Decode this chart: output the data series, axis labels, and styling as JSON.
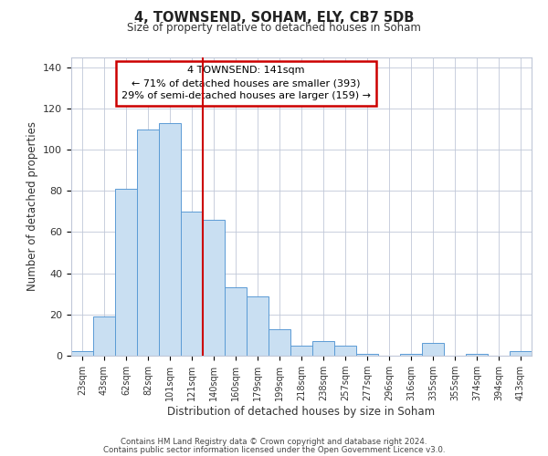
{
  "title": "4, TOWNSEND, SOHAM, ELY, CB7 5DB",
  "subtitle": "Size of property relative to detached houses in Soham",
  "xlabel": "Distribution of detached houses by size in Soham",
  "ylabel": "Number of detached properties",
  "bar_labels": [
    "23sqm",
    "43sqm",
    "62sqm",
    "82sqm",
    "101sqm",
    "121sqm",
    "140sqm",
    "160sqm",
    "179sqm",
    "199sqm",
    "218sqm",
    "238sqm",
    "257sqm",
    "277sqm",
    "296sqm",
    "316sqm",
    "335sqm",
    "355sqm",
    "374sqm",
    "394sqm",
    "413sqm"
  ],
  "bar_values": [
    2,
    19,
    81,
    110,
    113,
    70,
    66,
    33,
    29,
    13,
    5,
    7,
    5,
    1,
    0,
    1,
    6,
    0,
    1,
    0,
    2
  ],
  "bar_color": "#c9dff2",
  "bar_edge_color": "#5b9bd5",
  "ylim": [
    0,
    145
  ],
  "yticks": [
    0,
    20,
    40,
    60,
    80,
    100,
    120,
    140
  ],
  "vline_index": 6,
  "vline_color": "#cc0000",
  "annotation_title": "4 TOWNSEND: 141sqm",
  "annotation_line1": "← 71% of detached houses are smaller (393)",
  "annotation_line2": "29% of semi-detached houses are larger (159) →",
  "annotation_box_color": "#cc0000",
  "footer_line1": "Contains HM Land Registry data © Crown copyright and database right 2024.",
  "footer_line2": "Contains public sector information licensed under the Open Government Licence v3.0.",
  "background_color": "#ffffff",
  "grid_color": "#c0c8d8"
}
